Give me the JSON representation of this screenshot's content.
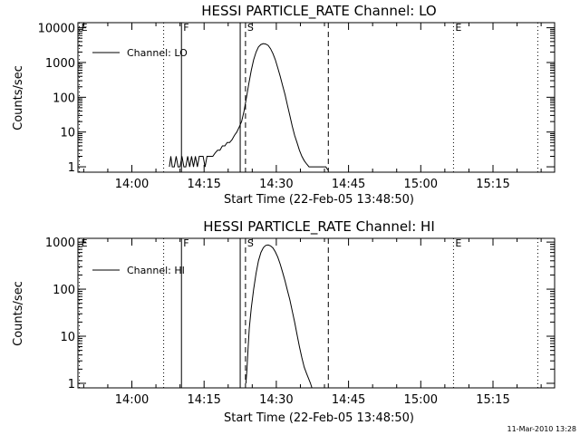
{
  "footer": {
    "timestamp": "11-Mar-2010 13:28"
  },
  "chart_data": [
    {
      "type": "line",
      "title": "HESSI PARTICLE_RATE Channel: LO",
      "xlabel": "Start Time (22-Feb-05 13:48:50)",
      "ylabel": "Counts/sec",
      "y_scale": "log",
      "x_unit": "minutes after 13:48:50",
      "xlim": [
        0,
        99
      ],
      "ylim": [
        0.7,
        14000
      ],
      "xticks": [
        11.2,
        26.2,
        41.2,
        56.2,
        71.2,
        86.2
      ],
      "xtick_labels": [
        "14:00",
        "14:15",
        "14:30",
        "14:45",
        "15:00",
        "15:15"
      ],
      "yticks": [
        1,
        10,
        100,
        1000,
        10000
      ],
      "ytick_labels": [
        "1",
        "10",
        "100",
        "1000",
        "10000"
      ],
      "legend": {
        "label": "Channel: LO",
        "position": "top-left"
      },
      "markers": [
        {
          "label": "E",
          "x": 0.3,
          "style": "dotted"
        },
        {
          "label": "",
          "x": 17.8,
          "style": "dotted"
        },
        {
          "label": "F",
          "x": 21.5,
          "style": "solid"
        },
        {
          "label": "",
          "x": 33.7,
          "style": "solid"
        },
        {
          "label": "S",
          "x": 34.8,
          "style": "dashed"
        },
        {
          "label": "",
          "x": 52.0,
          "style": "dashed"
        },
        {
          "label": "E",
          "x": 78.0,
          "style": "dotted"
        },
        {
          "label": "",
          "x": 95.5,
          "style": "dotted"
        }
      ],
      "series": [
        {
          "name": "Channel: LO",
          "x": [
            19.0,
            19.3,
            19.6,
            20.0,
            20.4,
            20.8,
            21.2,
            21.6,
            22.0,
            22.4,
            22.8,
            23.2,
            23.6,
            24.0,
            24.4,
            24.8,
            25.2,
            25.6,
            26.0,
            26.4,
            26.8,
            27.2,
            27.6,
            28.0,
            28.5,
            29.0,
            29.5,
            30.0,
            30.5,
            31.0,
            31.5,
            32.0,
            32.5,
            33.0,
            33.5,
            34.0,
            34.5,
            35.0,
            35.5,
            36.0,
            36.5,
            37.0,
            37.5,
            38.0,
            38.5,
            39.0,
            39.5,
            40.0,
            40.5,
            41.0,
            41.5,
            42.0,
            42.5,
            43.0,
            43.5,
            44.0,
            44.5,
            45.0,
            45.5,
            46.0,
            46.5,
            47.0,
            47.5,
            48.0,
            48.5,
            49.0,
            49.5,
            50.0,
            50.5,
            51.0,
            51.5,
            51.9
          ],
          "y": [
            1,
            2,
            1,
            1,
            2,
            1,
            1,
            2,
            1,
            1,
            2,
            1,
            2,
            1,
            2,
            1,
            2,
            2,
            2,
            1,
            2,
            2,
            2,
            2,
            2.5,
            3,
            3,
            4,
            4,
            5,
            5,
            6,
            8,
            10,
            14,
            20,
            40,
            100,
            250,
            600,
            1200,
            2000,
            2800,
            3300,
            3500,
            3400,
            3100,
            2500,
            1800,
            1200,
            700,
            400,
            220,
            120,
            60,
            30,
            15,
            8,
            5,
            3,
            2,
            1.5,
            1.2,
            1,
            1,
            1,
            1,
            1,
            1,
            1,
            1,
            0.8
          ]
        }
      ]
    },
    {
      "type": "line",
      "title": "HESSI PARTICLE_RATE Channel: HI",
      "xlabel": "Start Time (22-Feb-05 13:48:50)",
      "ylabel": "Counts/sec",
      "y_scale": "log",
      "x_unit": "minutes after 13:48:50",
      "xlim": [
        0,
        99
      ],
      "ylim": [
        0.8,
        1200
      ],
      "xticks": [
        11.2,
        26.2,
        41.2,
        56.2,
        71.2,
        86.2
      ],
      "xtick_labels": [
        "14:00",
        "14:15",
        "14:30",
        "14:45",
        "15:00",
        "15:15"
      ],
      "yticks": [
        1,
        10,
        100,
        1000
      ],
      "ytick_labels": [
        "1",
        "10",
        "100",
        "1000"
      ],
      "legend": {
        "label": "Channel: HI",
        "position": "top-left"
      },
      "markers": [
        {
          "label": "E",
          "x": 0.3,
          "style": "dotted"
        },
        {
          "label": "",
          "x": 17.8,
          "style": "dotted"
        },
        {
          "label": "F",
          "x": 21.5,
          "style": "solid"
        },
        {
          "label": "",
          "x": 33.7,
          "style": "solid"
        },
        {
          "label": "S",
          "x": 34.8,
          "style": "dashed"
        },
        {
          "label": "",
          "x": 52.0,
          "style": "dashed"
        },
        {
          "label": "E",
          "x": 78.0,
          "style": "dotted"
        },
        {
          "label": "",
          "x": 95.5,
          "style": "dotted"
        }
      ],
      "series": [
        {
          "name": "Channel: HI",
          "x": [
            34.9,
            35.1,
            35.3,
            35.6,
            36.0,
            36.5,
            37.0,
            37.5,
            38.0,
            38.5,
            39.0,
            39.5,
            40.0,
            40.5,
            41.0,
            41.5,
            42.0,
            42.5,
            43.0,
            43.5,
            44.0,
            44.5,
            45.0,
            45.5,
            46.0,
            46.5,
            47.0,
            47.5,
            48.0,
            48.3,
            48.6
          ],
          "y": [
            1.0,
            2,
            5,
            15,
            40,
            100,
            220,
            400,
            600,
            760,
            850,
            870,
            830,
            750,
            620,
            480,
            340,
            230,
            150,
            95,
            60,
            35,
            20,
            11,
            6,
            3.5,
            2.2,
            1.6,
            1.2,
            1.0,
            0.8
          ]
        }
      ]
    }
  ]
}
